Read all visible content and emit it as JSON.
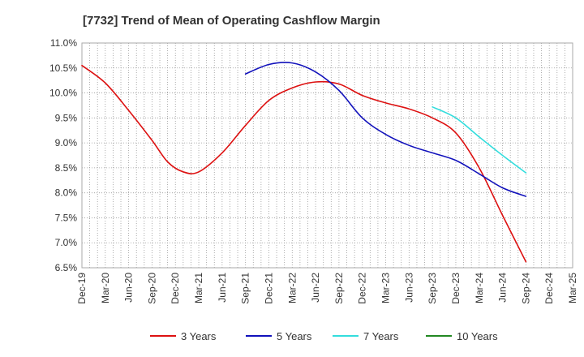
{
  "chart_data": {
    "type": "line",
    "title": "[7732]  Trend of Mean of Operating Cashflow Margin",
    "xlabel": "",
    "ylabel": "",
    "ylim": [
      6.5,
      11.0
    ],
    "y_ticks": [
      "6.5%",
      "7.0%",
      "7.5%",
      "8.0%",
      "8.5%",
      "9.0%",
      "9.5%",
      "10.0%",
      "10.5%",
      "11.0%"
    ],
    "x_ticks": [
      "Dec-19",
      "Mar-20",
      "Jun-20",
      "Sep-20",
      "Dec-20",
      "Mar-21",
      "Jun-21",
      "Sep-21",
      "Dec-21",
      "Mar-22",
      "Jun-22",
      "Sep-22",
      "Dec-22",
      "Mar-23",
      "Jun-23",
      "Sep-23",
      "Dec-23",
      "Mar-24",
      "Jun-24",
      "Sep-24",
      "Dec-24",
      "Mar-25"
    ],
    "grid": true,
    "legend_position": "bottom",
    "series": [
      {
        "name": "3 Years",
        "color": "#dd1111",
        "points": [
          [
            "Dec-19",
            10.55
          ],
          [
            "Mar-20",
            10.2
          ],
          [
            "Jun-20",
            9.65
          ],
          [
            "Sep-20",
            9.05
          ],
          [
            "Nov-20",
            8.62
          ],
          [
            "Jan-21",
            8.42
          ],
          [
            "Mar-21",
            8.42
          ],
          [
            "Jun-21",
            8.8
          ],
          [
            "Sep-21",
            9.35
          ],
          [
            "Dec-21",
            9.85
          ],
          [
            "Mar-22",
            10.1
          ],
          [
            "Jun-22",
            10.22
          ],
          [
            "Sep-22",
            10.18
          ],
          [
            "Dec-22",
            9.95
          ],
          [
            "Mar-23",
            9.8
          ],
          [
            "Jun-23",
            9.68
          ],
          [
            "Sep-23",
            9.5
          ],
          [
            "Dec-23",
            9.2
          ],
          [
            "Mar-24",
            8.5
          ],
          [
            "Jun-24",
            7.55
          ],
          [
            "Sep-24",
            6.62
          ]
        ]
      },
      {
        "name": "5 Years",
        "color": "#1111bb",
        "points": [
          [
            "Sep-21",
            10.38
          ],
          [
            "Dec-21",
            10.57
          ],
          [
            "Mar-22",
            10.6
          ],
          [
            "Jun-22",
            10.42
          ],
          [
            "Sep-22",
            10.05
          ],
          [
            "Dec-22",
            9.5
          ],
          [
            "Mar-23",
            9.17
          ],
          [
            "Jun-23",
            8.95
          ],
          [
            "Sep-23",
            8.8
          ],
          [
            "Dec-23",
            8.65
          ],
          [
            "Mar-24",
            8.38
          ],
          [
            "Jun-24",
            8.1
          ],
          [
            "Sep-24",
            7.93
          ]
        ]
      },
      {
        "name": "7 Years",
        "color": "#33dddd",
        "points": [
          [
            "Sep-23",
            9.72
          ],
          [
            "Dec-23",
            9.5
          ],
          [
            "Mar-24",
            9.12
          ],
          [
            "Jun-24",
            8.75
          ],
          [
            "Sep-24",
            8.4
          ]
        ]
      },
      {
        "name": "10 Years",
        "color": "#228822",
        "points": []
      }
    ]
  }
}
